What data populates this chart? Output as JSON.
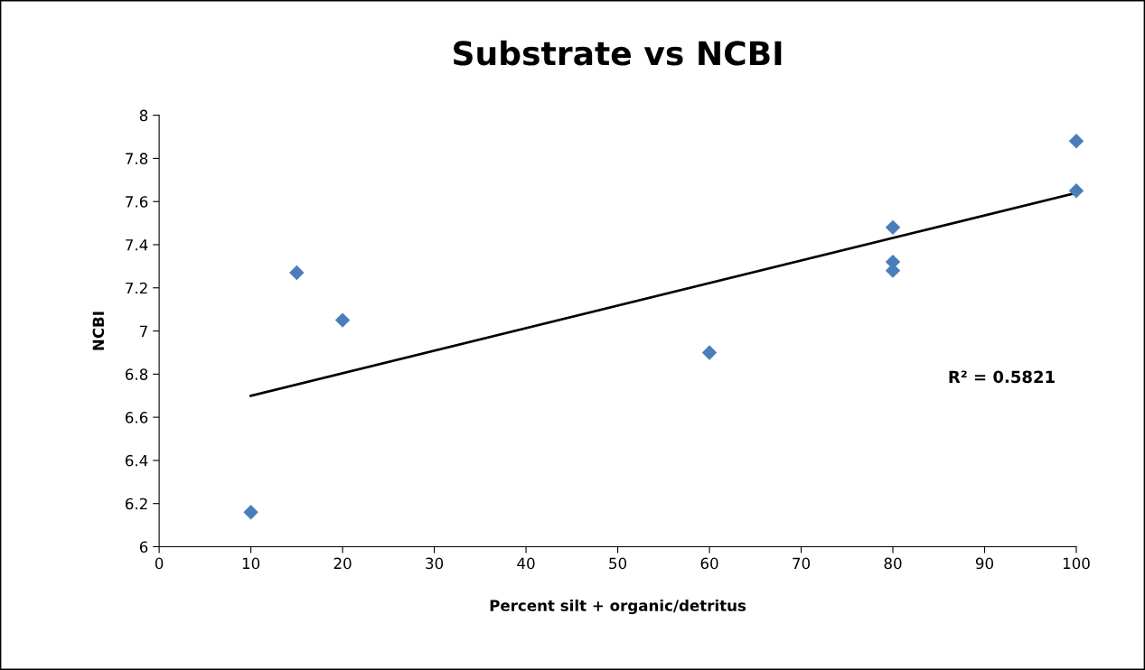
{
  "chart_data": {
    "type": "scatter",
    "title": "Substrate vs NCBI",
    "xlabel": "Percent silt + organic/detritus",
    "ylabel": "NCBI",
    "series": [
      {
        "color": "#4a7ebb",
        "marker": "diamond",
        "x": [
          10,
          15,
          20,
          60,
          80,
          80,
          80,
          100,
          100
        ],
        "values": [
          6.16,
          7.27,
          7.05,
          6.9,
          7.48,
          7.32,
          7.28,
          7.88,
          7.65
        ]
      },
      {
        "type": "line",
        "color": "#000000",
        "marker": "none",
        "line_style": "solid",
        "x": [
          10,
          100
        ],
        "values": [
          6.7,
          7.64
        ]
      }
    ],
    "annotations": [
      "R² = 0.5821"
    ],
    "xlim": [
      0,
      100
    ],
    "xticks": [
      0,
      10,
      20,
      30,
      40,
      50,
      60,
      70,
      80,
      90,
      100
    ],
    "ylim": [
      6,
      8
    ],
    "yticks": [
      6,
      6.2,
      6.4,
      6.6,
      6.8,
      7,
      7.2,
      7.4,
      7.6,
      7.8,
      8
    ],
    "grid": false,
    "legend": false
  }
}
